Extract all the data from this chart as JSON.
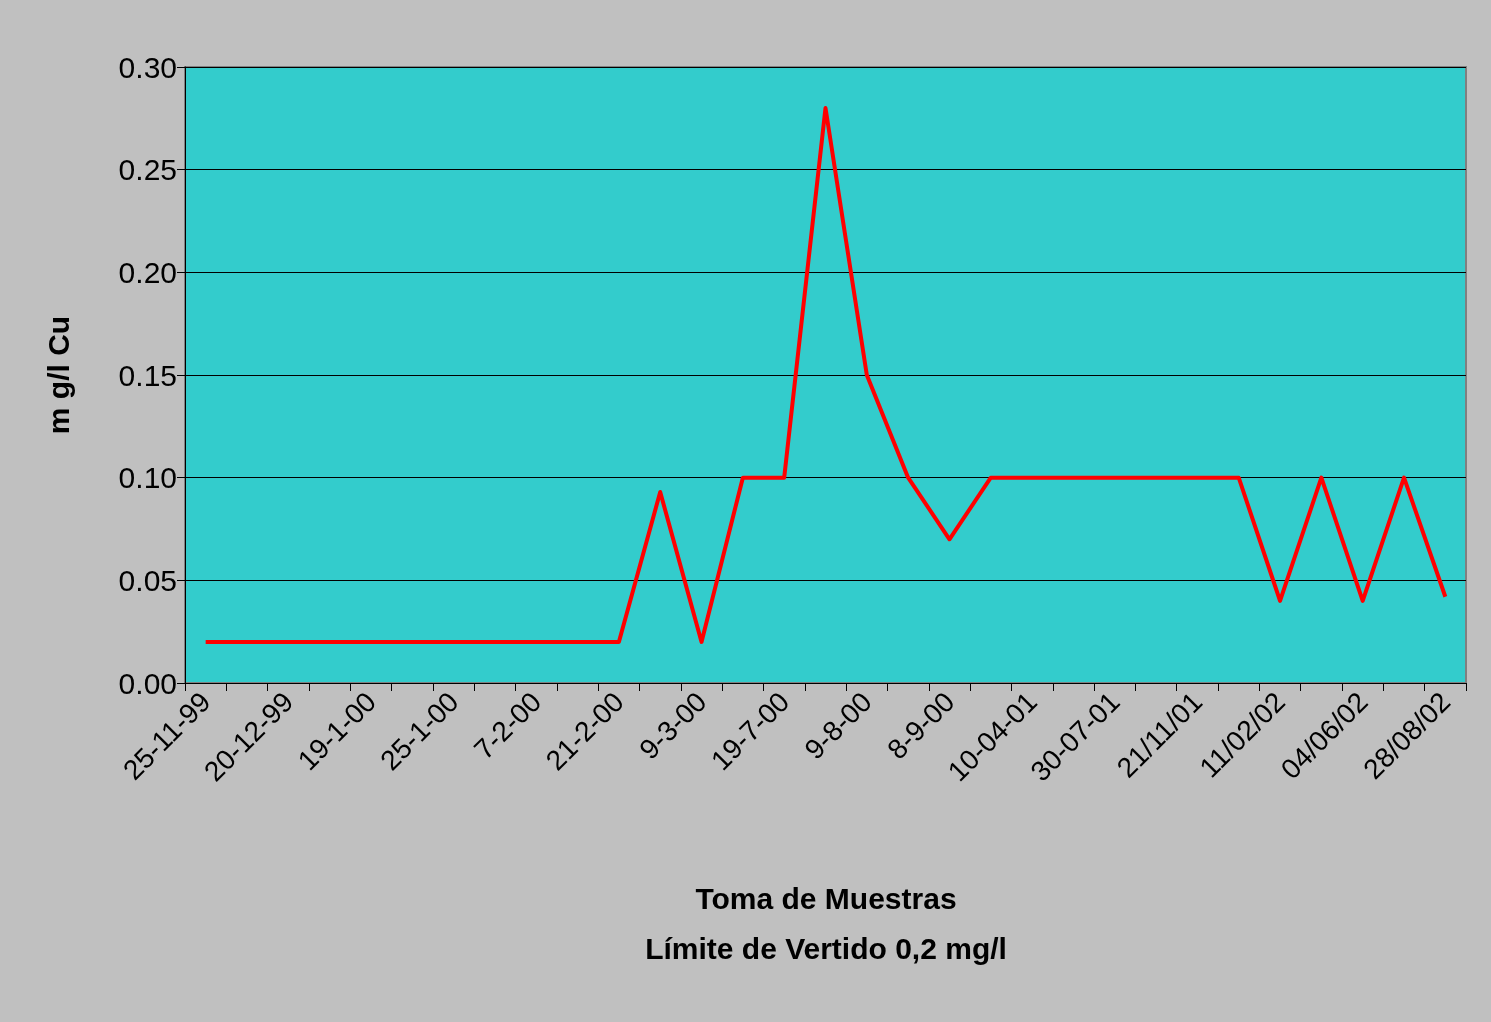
{
  "chart_data": {
    "type": "line",
    "xlabel": "Toma de Muestras",
    "ylabel": "m g/l Cu",
    "annotations": [
      "Límite de Vertido 0,2 mg/l"
    ],
    "categories": [
      "25-11-99",
      null,
      "20-12-99",
      null,
      "19-1-00",
      null,
      "25-1-00",
      null,
      "7-2-00",
      null,
      "21-2-00",
      null,
      "9-3-00",
      null,
      "19-7-00",
      null,
      "9-8-00",
      null,
      "8-9-00",
      null,
      "10-04-01",
      null,
      "30-07-01",
      null,
      "21/11/01",
      null,
      "11/02/02",
      null,
      "04/06/02",
      null,
      "28/08/02"
    ],
    "series": [
      {
        "color": "#ff0000",
        "values": [
          0.02,
          0.02,
          0.02,
          0.02,
          0.02,
          0.02,
          0.02,
          0.02,
          0.02,
          0.02,
          0.02,
          0.093,
          0.02,
          0.1,
          0.1,
          0.28,
          0.15,
          0.1,
          0.07,
          0.1,
          0.1,
          0.1,
          0.1,
          0.1,
          0.1,
          0.1,
          0.04,
          0.1,
          0.04,
          0.1,
          0.042
        ]
      }
    ],
    "ylim": [
      0,
      0.3
    ],
    "yticks": [
      {
        "value": 0,
        "label": "0.00"
      },
      {
        "value": 0.05,
        "label": "0.05"
      },
      {
        "value": 0.1,
        "label": "0.10"
      },
      {
        "value": 0.15,
        "label": "0.15"
      },
      {
        "value": 0.2,
        "label": "0.20"
      },
      {
        "value": 0.25,
        "label": "0.25"
      },
      {
        "value": 0.3,
        "label": "0.30"
      }
    ],
    "grid": "y",
    "marker": "none",
    "line_style": "solid"
  }
}
